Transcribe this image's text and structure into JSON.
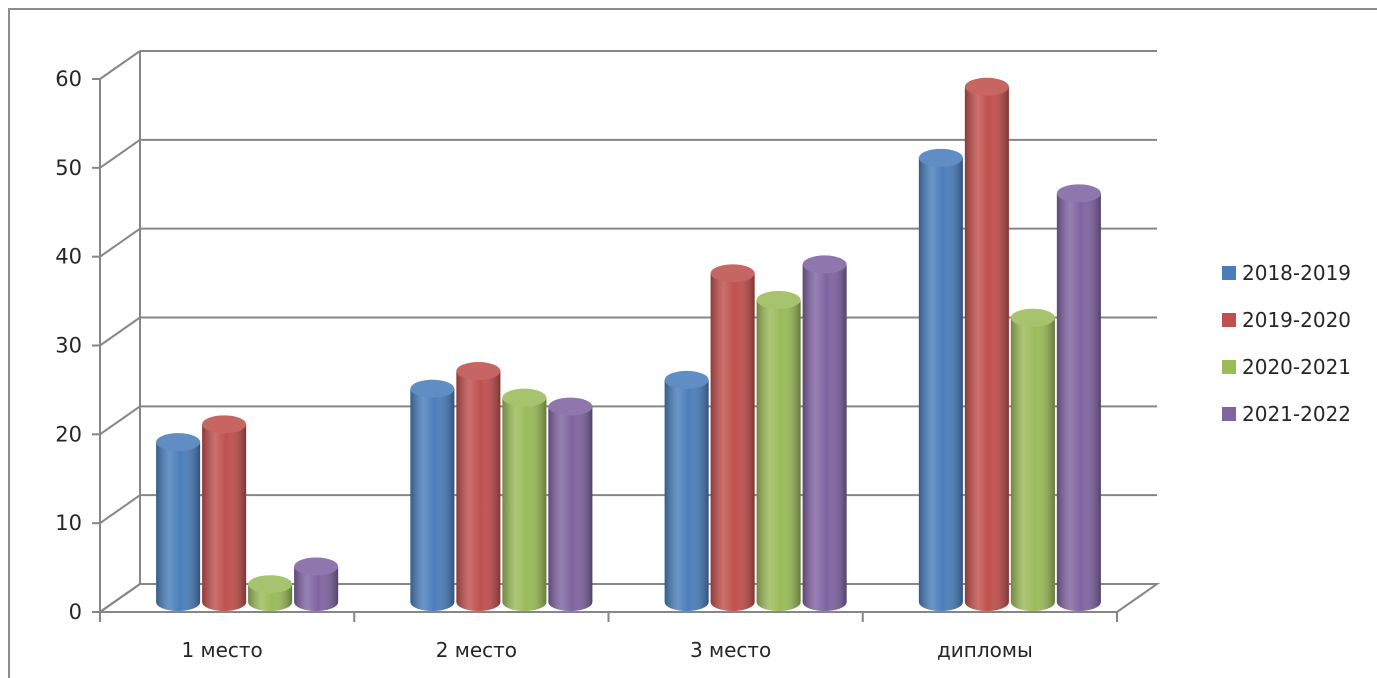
{
  "chart_data": {
    "type": "bar",
    "categories": [
      "1 место",
      "2 место",
      "3 место",
      "дипломы"
    ],
    "series": [
      {
        "name": "2018-2019",
        "values": [
          18,
          24,
          25,
          50
        ],
        "color": "#4a7ebb"
      },
      {
        "name": "2019-2020",
        "values": [
          20,
          26,
          37,
          58
        ],
        "color": "#c0504d"
      },
      {
        "name": "2020-2021",
        "values": [
          2,
          23,
          34,
          32
        ],
        "color": "#9bbb59"
      },
      {
        "name": "2021-2022",
        "values": [
          4,
          22,
          38,
          46
        ],
        "color": "#8064a2"
      }
    ],
    "ylim": [
      0,
      60
    ],
    "yticks": [
      "0",
      "10",
      "20",
      "30",
      "40",
      "50",
      "60"
    ],
    "title": "",
    "xlabel": "",
    "ylabel": "",
    "grid": true,
    "legend_position": "right",
    "style": "3d-cylinder"
  }
}
